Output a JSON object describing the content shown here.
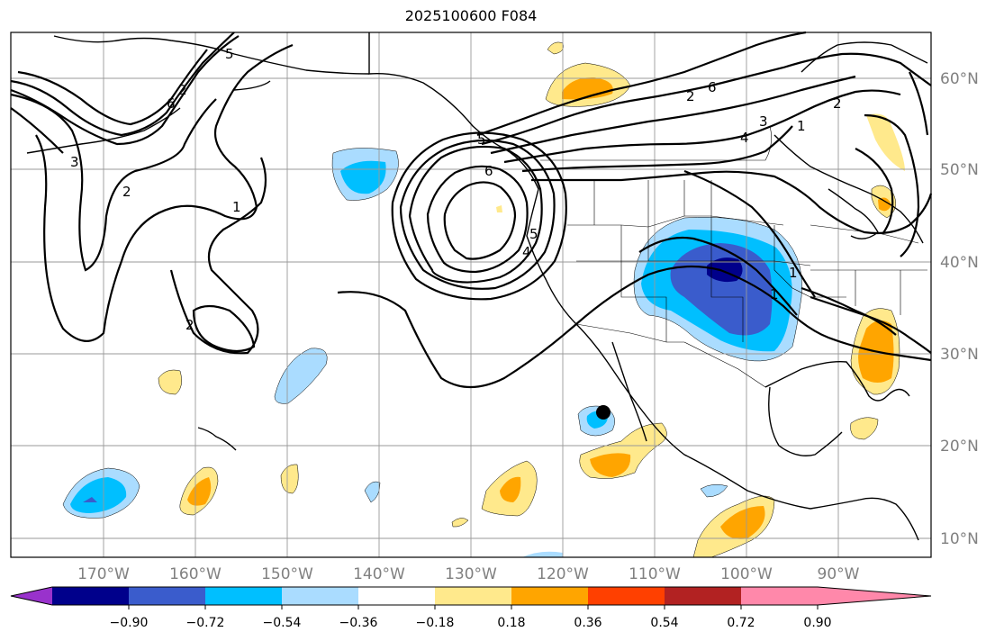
{
  "title": "2025100600 F084",
  "map": {
    "lon_labels": [
      "170°W",
      "160°W",
      "150°W",
      "140°W",
      "130°W",
      "120°W",
      "110°W",
      "100°W",
      "90°W"
    ],
    "lat_labels": [
      "60°N",
      "50°N",
      "40°N",
      "30°N",
      "20°N",
      "10°N"
    ],
    "contour_labels": [
      "2",
      "1",
      "2",
      "3",
      "2",
      "5",
      "6",
      "4",
      "5",
      "6",
      "4",
      "3",
      "6",
      "2",
      "1",
      "1",
      "2",
      "5",
      "1"
    ],
    "marker": "station-dot"
  },
  "colorbar": {
    "colors": [
      "#9932cc",
      "#00008b",
      "#3a5ccc",
      "#00bfff",
      "#aadcff",
      "#ffffff",
      "#ffe98c",
      "#ffa500",
      "#ff4000",
      "#b22222",
      "#ff88aa"
    ],
    "ticks": [
      "−0.90",
      "−0.72",
      "−0.54",
      "−0.36",
      "−0.18",
      "0.18",
      "0.36",
      "0.54",
      "0.72",
      "0.90"
    ]
  }
}
